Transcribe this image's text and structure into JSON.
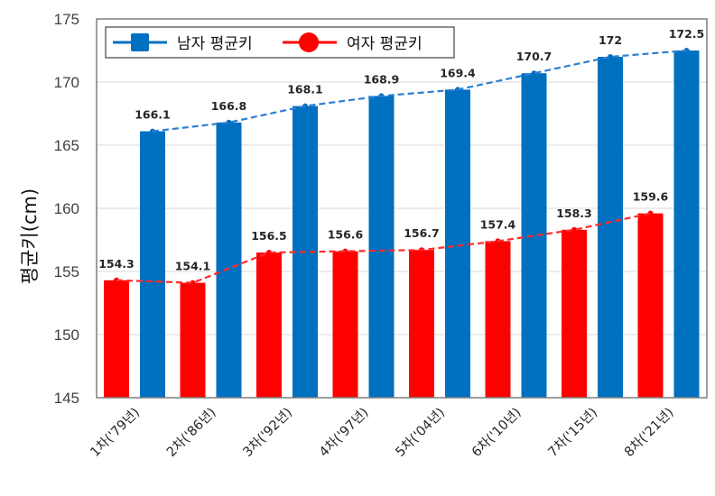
{
  "chart_data": {
    "type": "bar",
    "title": "",
    "xlabel": "",
    "ylabel": "평균키(cm)",
    "ylim": [
      145,
      175
    ],
    "yticks": [
      145,
      150,
      155,
      160,
      165,
      170,
      175
    ],
    "grid": true,
    "legend_position": "top-left inside",
    "categories": [
      "1차('79년)",
      "2차('86년)",
      "3차('92년)",
      "4차('97년)",
      "5차('04년)",
      "6차('10년)",
      "7차('15년)",
      "8차('21년)"
    ],
    "series": [
      {
        "name": "여자 평균키",
        "color": "#ff0000",
        "values": [
          154.3,
          154.1,
          156.5,
          156.6,
          156.7,
          157.4,
          158.3,
          159.6
        ],
        "trendline": "dashed"
      },
      {
        "name": "남자 평균키",
        "color": "#0070c0",
        "values": [
          166.1,
          166.8,
          168.1,
          168.9,
          169.4,
          170.7,
          172,
          172.5
        ],
        "trendline": "dashed"
      }
    ],
    "legend": [
      {
        "name": "남자 평균키",
        "color": "#0070c0",
        "marker": "square"
      },
      {
        "name": "여자 평균키",
        "color": "#ff0000",
        "marker": "circle"
      }
    ]
  }
}
